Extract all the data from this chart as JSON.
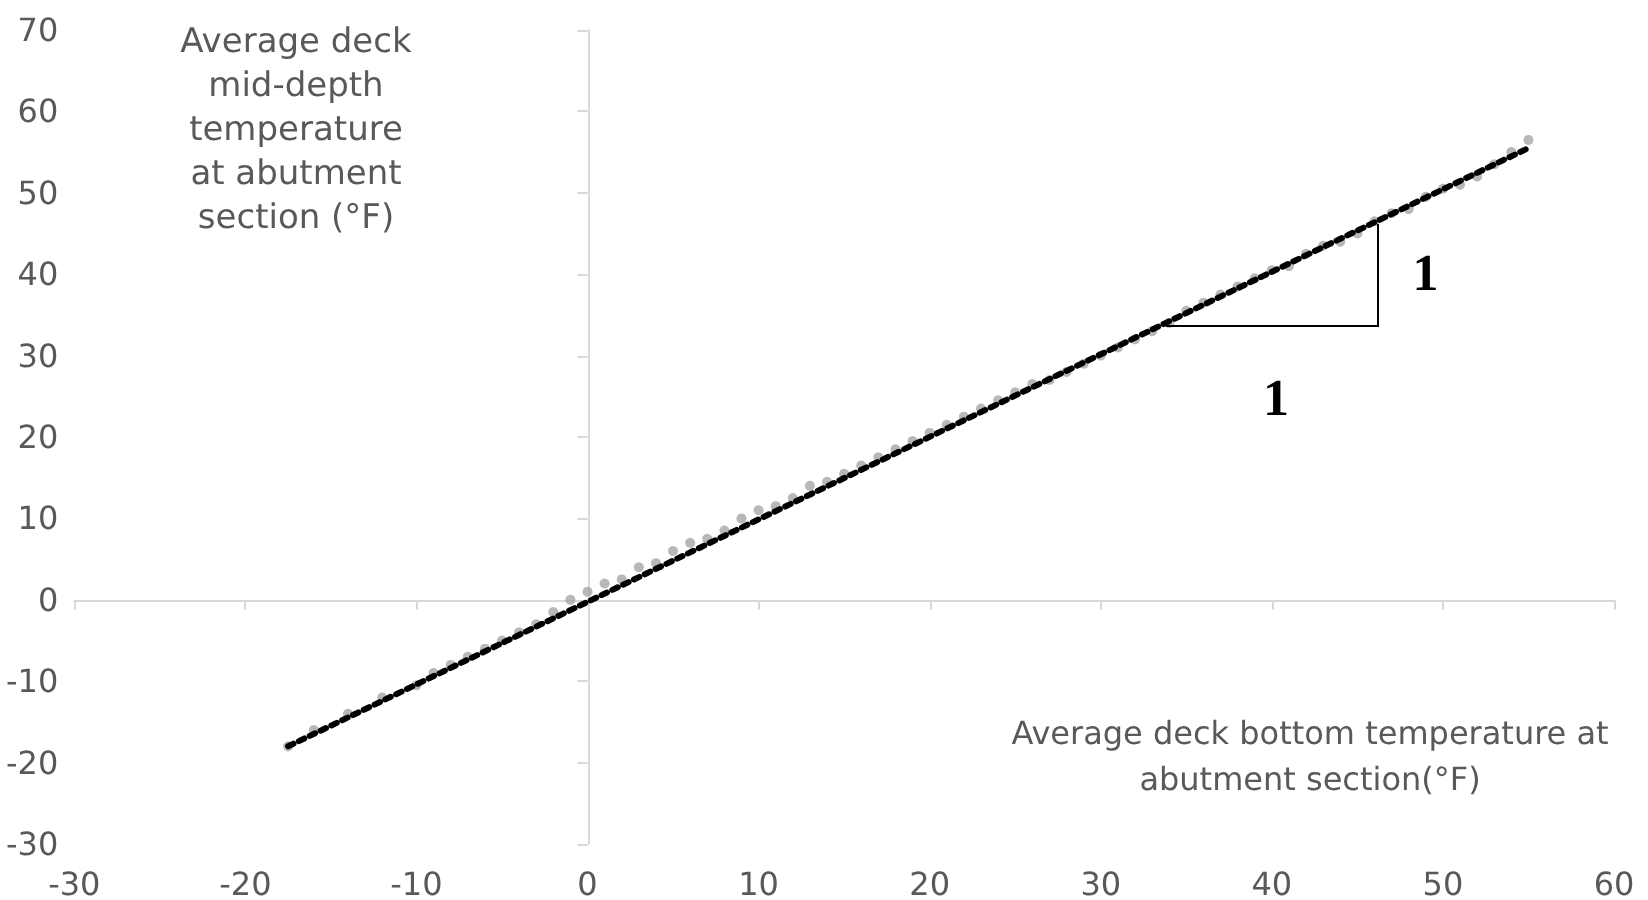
{
  "chart_data": {
    "type": "scatter",
    "xlabel": "Average deck bottom temperature at abutment section(°F)",
    "ylabel": "Average deck mid-depth temperature at abutment section (°F)",
    "xlim": [
      -30,
      60
    ],
    "xticks": [
      -30,
      -20,
      -10,
      0,
      10,
      20,
      30,
      40,
      50,
      60
    ],
    "ylim": [
      -30,
      70
    ],
    "yticks": [
      -30,
      -20,
      -10,
      0,
      10,
      20,
      30,
      40,
      50,
      60,
      70
    ],
    "marker": "circle",
    "series": [
      {
        "color": "#a6a6a6",
        "x": [
          -17.5,
          -16,
          -14,
          -12,
          -10,
          -9,
          -8,
          -7,
          -6,
          -5,
          -4,
          -3,
          -2,
          -1,
          0,
          1,
          2,
          3,
          4,
          5,
          6,
          7,
          8,
          9,
          10,
          11,
          12,
          13,
          14,
          15,
          16,
          17,
          18,
          19,
          20,
          21,
          22,
          23,
          24,
          25,
          26,
          27,
          28,
          29,
          30,
          31,
          32,
          33,
          34,
          35,
          36,
          37,
          38,
          39,
          40,
          41,
          42,
          43,
          44,
          45,
          46,
          47,
          48,
          49,
          50,
          51,
          52,
          53,
          54,
          55
        ],
        "values": [
          -18,
          -16,
          -14,
          -12,
          -10.5,
          -9,
          -8,
          -7,
          -6,
          -5,
          -4,
          -3,
          -1.5,
          0,
          1,
          2,
          2.5,
          4,
          4.5,
          6,
          7,
          7.5,
          8.5,
          10,
          11,
          11.5,
          12.5,
          14,
          14.5,
          15.5,
          16.5,
          17.5,
          18.5,
          19.5,
          20.5,
          21.5,
          22.5,
          23.5,
          24.5,
          25.5,
          26.5,
          27,
          28,
          29,
          30,
          31,
          32,
          33,
          34,
          35.5,
          36.5,
          37.5,
          38.5,
          39.5,
          40.5,
          41,
          42.5,
          43.5,
          44,
          45,
          46.5,
          47.5,
          48,
          49.5,
          50.5,
          51,
          52,
          53.5,
          55,
          56.5
        ]
      },
      {
        "type": "line",
        "color": "#000000",
        "line_style": "dotted",
        "marker": "none",
        "x": [
          -17.5,
          55
        ],
        "values": [
          -18,
          55.5
        ]
      }
    ],
    "annotations": [
      "1",
      {
        "text": "1",
        "x": 46.3,
        "y": 47
      }
    ]
  }
}
